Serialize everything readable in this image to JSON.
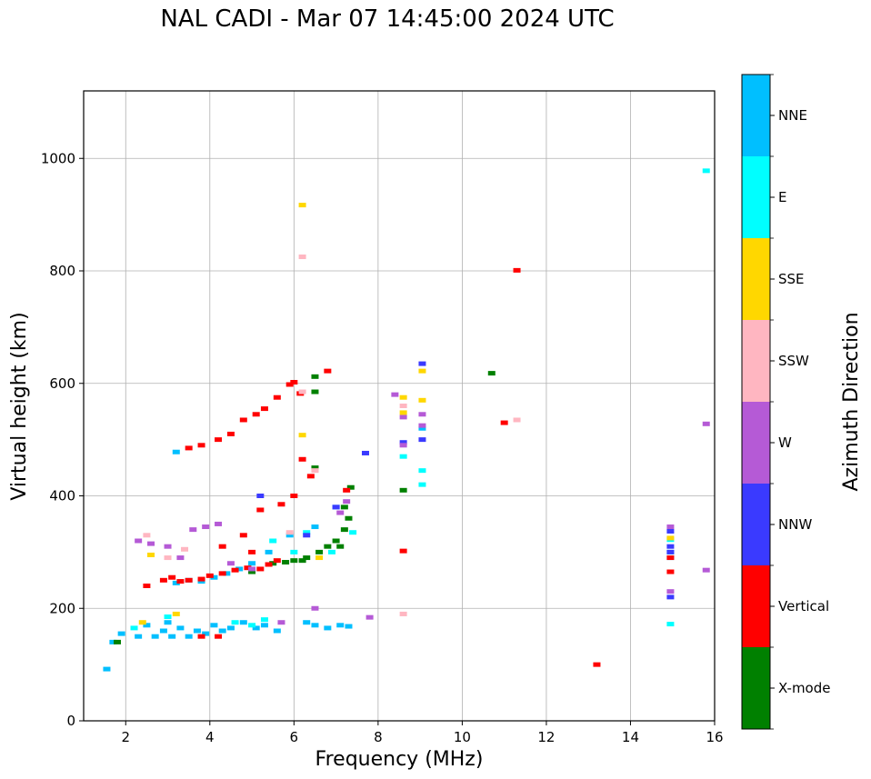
{
  "chart_data": {
    "type": "scatter",
    "title": "NAL CADI - Mar 07 14:45:00 2024 UTC",
    "xlabel": "Frequency (MHz)",
    "ylabel": "Virtual height (km)",
    "xlim": [
      1,
      16
    ],
    "ylim": [
      0,
      1120
    ],
    "xticks": [
      2,
      4,
      6,
      8,
      10,
      12,
      14,
      16
    ],
    "yticks": [
      0,
      200,
      400,
      600,
      800,
      1000
    ],
    "grid": true,
    "colorbar": {
      "label": "Azimuth Direction",
      "categories": [
        {
          "name": "X-mode",
          "color": "#008000"
        },
        {
          "name": "Vertical",
          "color": "#ff0000"
        },
        {
          "name": "NNW",
          "color": "#3a3aff"
        },
        {
          "name": "W",
          "color": "#b55ad6"
        },
        {
          "name": "SSW",
          "color": "#ffb6c1"
        },
        {
          "name": "SSE",
          "color": "#ffd700"
        },
        {
          "name": "E",
          "color": "#00ffff"
        },
        {
          "name": "NNE",
          "color": "#00bfff"
        }
      ]
    },
    "series": [
      {
        "name": "NNE",
        "points": [
          [
            1.55,
            92
          ],
          [
            1.7,
            140
          ],
          [
            1.9,
            155
          ],
          [
            2.3,
            150
          ],
          [
            2.5,
            170
          ],
          [
            2.7,
            150
          ],
          [
            2.9,
            160
          ],
          [
            3.0,
            175
          ],
          [
            3.1,
            150
          ],
          [
            3.3,
            165
          ],
          [
            3.5,
            150
          ],
          [
            3.7,
            160
          ],
          [
            3.9,
            155
          ],
          [
            4.1,
            170
          ],
          [
            4.3,
            160
          ],
          [
            4.5,
            165
          ],
          [
            4.8,
            175
          ],
          [
            5.1,
            165
          ],
          [
            5.3,
            170
          ],
          [
            5.6,
            160
          ],
          [
            6.3,
            175
          ],
          [
            6.5,
            170
          ],
          [
            6.8,
            165
          ],
          [
            7.1,
            170
          ],
          [
            7.3,
            168
          ],
          [
            3.2,
            245
          ],
          [
            3.5,
            250
          ],
          [
            3.8,
            248
          ],
          [
            4.1,
            255
          ],
          [
            4.4,
            262
          ],
          [
            4.7,
            270
          ],
          [
            5.0,
            280
          ],
          [
            5.4,
            300
          ],
          [
            5.9,
            330
          ],
          [
            6.5,
            345
          ],
          [
            7.0,
            380
          ],
          [
            3.2,
            478
          ],
          [
            9.05,
            520
          ],
          [
            14.95,
            290
          ],
          [
            14.95,
            300
          ]
        ]
      },
      {
        "name": "E",
        "points": [
          [
            2.2,
            165
          ],
          [
            3.0,
            185
          ],
          [
            4.6,
            175
          ],
          [
            5.0,
            170
          ],
          [
            5.3,
            180
          ],
          [
            5.5,
            320
          ],
          [
            6.0,
            300
          ],
          [
            6.3,
            335
          ],
          [
            6.9,
            300
          ],
          [
            7.4,
            335
          ],
          [
            9.05,
            420
          ],
          [
            9.05,
            445
          ],
          [
            14.95,
            172
          ],
          [
            15.8,
            978
          ],
          [
            8.6,
            470
          ],
          [
            14.95,
            322
          ]
        ]
      },
      {
        "name": "X-mode",
        "points": [
          [
            1.8,
            140
          ],
          [
            5.0,
            265
          ],
          [
            5.5,
            280
          ],
          [
            5.8,
            282
          ],
          [
            6.0,
            285
          ],
          [
            6.3,
            290
          ],
          [
            6.6,
            300
          ],
          [
            6.8,
            310
          ],
          [
            7.0,
            320
          ],
          [
            7.2,
            340
          ],
          [
            7.3,
            360
          ],
          [
            7.1,
            310
          ],
          [
            6.5,
            450
          ],
          [
            6.5,
            585
          ],
          [
            6.5,
            612
          ],
          [
            8.6,
            410
          ],
          [
            10.7,
            618
          ],
          [
            7.2,
            380
          ],
          [
            7.35,
            415
          ],
          [
            6.2,
            285
          ]
        ]
      },
      {
        "name": "Vertical",
        "points": [
          [
            2.5,
            240
          ],
          [
            2.9,
            250
          ],
          [
            3.1,
            255
          ],
          [
            3.3,
            248
          ],
          [
            3.5,
            250
          ],
          [
            3.8,
            252
          ],
          [
            4.0,
            258
          ],
          [
            4.3,
            262
          ],
          [
            4.6,
            268
          ],
          [
            4.9,
            272
          ],
          [
            5.2,
            270
          ],
          [
            5.4,
            278
          ],
          [
            5.6,
            285
          ],
          [
            5.0,
            300
          ],
          [
            4.2,
            150
          ],
          [
            3.8,
            150
          ],
          [
            3.5,
            485
          ],
          [
            3.8,
            490
          ],
          [
            4.2,
            500
          ],
          [
            4.5,
            510
          ],
          [
            4.8,
            535
          ],
          [
            5.1,
            545
          ],
          [
            5.3,
            555
          ],
          [
            5.6,
            575
          ],
          [
            5.9,
            598
          ],
          [
            6.0,
            602
          ],
          [
            6.2,
            465
          ],
          [
            6.4,
            435
          ],
          [
            6.0,
            400
          ],
          [
            5.7,
            385
          ],
          [
            5.2,
            375
          ],
          [
            4.8,
            330
          ],
          [
            4.3,
            310
          ],
          [
            8.6,
            302
          ],
          [
            11.3,
            801
          ],
          [
            11.0,
            530
          ],
          [
            13.2,
            100
          ],
          [
            14.95,
            265
          ],
          [
            14.95,
            290
          ],
          [
            6.8,
            622
          ],
          [
            6.15,
            582
          ],
          [
            7.25,
            410
          ]
        ]
      },
      {
        "name": "NNW",
        "points": [
          [
            8.6,
            495
          ],
          [
            9.05,
            500
          ],
          [
            9.05,
            635
          ],
          [
            14.95,
            220
          ],
          [
            14.95,
            300
          ],
          [
            14.95,
            310
          ],
          [
            5.2,
            400
          ],
          [
            6.3,
            330
          ],
          [
            7.7,
            476
          ],
          [
            7.0,
            380
          ],
          [
            14.95,
            337
          ]
        ]
      },
      {
        "name": "W",
        "points": [
          [
            2.3,
            320
          ],
          [
            2.6,
            315
          ],
          [
            3.0,
            310
          ],
          [
            3.3,
            290
          ],
          [
            3.6,
            340
          ],
          [
            3.9,
            345
          ],
          [
            4.2,
            350
          ],
          [
            4.5,
            280
          ],
          [
            5.0,
            270
          ],
          [
            5.7,
            175
          ],
          [
            6.5,
            200
          ],
          [
            7.1,
            370
          ],
          [
            7.25,
            390
          ],
          [
            8.6,
            490
          ],
          [
            8.6,
            540
          ],
          [
            9.05,
            545
          ],
          [
            9.05,
            525
          ],
          [
            14.95,
            230
          ],
          [
            14.95,
            345
          ],
          [
            15.8,
            528
          ],
          [
            15.8,
            268
          ],
          [
            7.8,
            184
          ],
          [
            8.4,
            580
          ]
        ]
      },
      {
        "name": "SSW",
        "points": [
          [
            2.5,
            330
          ],
          [
            3.0,
            290
          ],
          [
            3.4,
            305
          ],
          [
            6.2,
            825
          ],
          [
            6.2,
            585
          ],
          [
            8.6,
            190
          ],
          [
            11.3,
            535
          ],
          [
            5.9,
            335
          ],
          [
            6.5,
            445
          ],
          [
            8.6,
            560
          ]
        ]
      },
      {
        "name": "SSE",
        "points": [
          [
            2.4,
            175
          ],
          [
            2.6,
            295
          ],
          [
            3.2,
            190
          ],
          [
            6.2,
            917
          ],
          [
            6.2,
            508
          ],
          [
            8.6,
            575
          ],
          [
            8.6,
            548
          ],
          [
            9.05,
            622
          ],
          [
            9.05,
            570
          ],
          [
            14.95,
            325
          ],
          [
            6.6,
            290
          ]
        ]
      }
    ]
  }
}
